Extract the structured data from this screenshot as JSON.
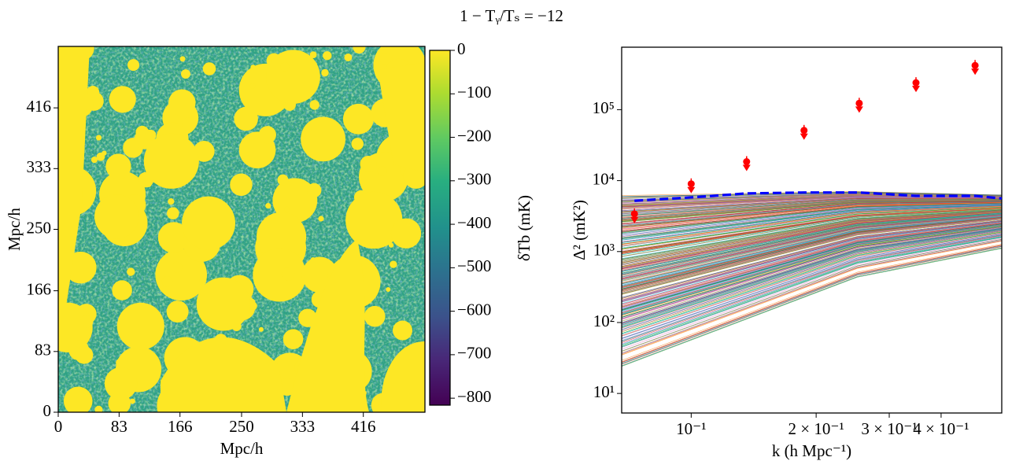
{
  "title": "1 − Tᵧ/Tₛ = −12",
  "chart_data": [
    {
      "type": "image",
      "xlabel": "Mpc/h",
      "ylabel": "Mpc/h",
      "xlim": [
        0,
        500
      ],
      "ylim": [
        0,
        500
      ],
      "xticks": [
        0,
        83,
        166,
        250,
        333,
        416
      ],
      "yticks": [
        0,
        83,
        166,
        250,
        333,
        416
      ],
      "colorbar": {
        "label": "δTb (mK)",
        "colormap": "viridis",
        "clim": [
          -816,
          0
        ],
        "ticks": [
          0,
          {
            "value": -100,
            "label": "−100"
          },
          {
            "value": -200,
            "label": "−200"
          },
          {
            "value": -300,
            "label": "−300"
          },
          {
            "value": -400,
            "label": "−400"
          },
          {
            "value": -500,
            "label": "−500"
          },
          {
            "value": -600,
            "label": "−600"
          },
          {
            "value": -700,
            "label": "−700"
          },
          {
            "value": -800,
            "label": "−800"
          }
        ]
      }
    },
    {
      "type": "line",
      "xscale": "log",
      "yscale": "log",
      "xlabel": "k (h Mpc⁻¹)",
      "ylabel": "Δ² (mK²)",
      "xlim": [
        0.068,
        0.56
      ],
      "ylim": [
        5.3,
        760000
      ],
      "xticks": [
        {
          "value": 0.1,
          "label": "10⁻¹"
        },
        {
          "value": 0.2,
          "label": "2 × 10⁻¹"
        },
        {
          "value": 0.3,
          "label": "3 × 10⁻¹"
        },
        {
          "value": 0.4,
          "label": "4 × 10⁻¹"
        }
      ],
      "yticks": [
        {
          "value": 10,
          "label": "10¹"
        },
        {
          "value": 100,
          "label": "10²"
        },
        {
          "value": 1000,
          "label": "10³"
        },
        {
          "value": 10000,
          "label": "10⁴"
        },
        {
          "value": 100000,
          "label": "10⁵"
        }
      ],
      "series": [
        {
          "color": "#0000ff",
          "style": "dashed",
          "x": [
            0.073,
            0.1,
            0.136,
            0.187,
            0.254,
            0.348,
            0.483,
            0.56
          ],
          "values": [
            5200,
            5800,
            6600,
            6800,
            6800,
            6100,
            6100,
            5600
          ]
        },
        {
          "color": "#ff0000",
          "style": "markers",
          "x": [
            0.073,
            0.1,
            0.136,
            0.187,
            0.254,
            0.348,
            0.483
          ],
          "values": [
            3400,
            9000,
            18500,
            51000,
            123000,
            240000,
            420000
          ]
        }
      ]
    }
  ]
}
